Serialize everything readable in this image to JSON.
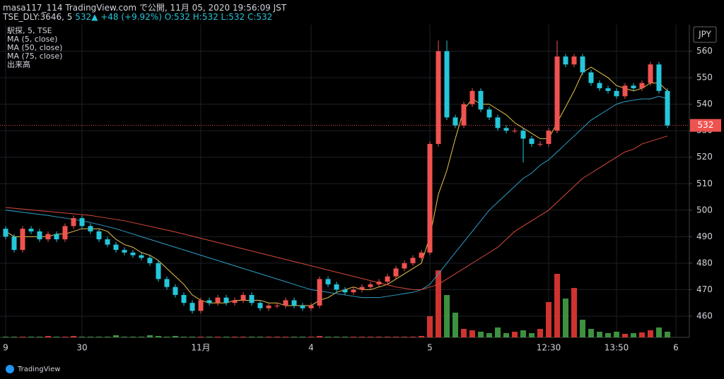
{
  "header": {
    "line1": "masa117_114 TradingView.com で公開, 11月 05, 2020 19:56:09 JST",
    "symbol": "TSE_DLY:3646, 5",
    "price": "532",
    "change": "▲ +48 (+9.92%)",
    "ohlc": "O:532 H:532 L:532 C:532"
  },
  "logo": "TradingView",
  "chart_data": {
    "type": "candlestick",
    "legend": [
      "駅探, 5, TSE",
      "MA (5, close)",
      "MA (50, close)",
      "MA (75, close)",
      "出来高"
    ],
    "currency": "JPY",
    "last_price": 532,
    "up_color": "#ef5350",
    "down_color": "#26c6da",
    "vol_up_color": "#e53935",
    "vol_down_color": "#43a047",
    "grid": true,
    "ylim": [
      452,
      570
    ],
    "yticks": [
      460,
      470,
      480,
      490,
      500,
      510,
      520,
      530,
      540,
      550,
      560
    ],
    "categories": [
      "9",
      null,
      null,
      null,
      null,
      null,
      null,
      null,
      null,
      "30",
      null,
      null,
      null,
      null,
      null,
      null,
      null,
      null,
      null,
      null,
      null,
      null,
      null,
      "11月",
      null,
      null,
      null,
      null,
      null,
      null,
      null,
      null,
      null,
      null,
      null,
      null,
      "4",
      null,
      null,
      null,
      null,
      null,
      null,
      null,
      null,
      null,
      null,
      null,
      null,
      null,
      "5",
      null,
      null,
      null,
      null,
      null,
      null,
      null,
      null,
      null,
      null,
      null,
      null,
      null,
      "12:30",
      null,
      null,
      null,
      null,
      null,
      null,
      null,
      "13:50",
      null,
      null,
      null,
      null,
      null,
      null,
      "6"
    ],
    "open": [
      493,
      490,
      485,
      493,
      492,
      489,
      491,
      489,
      494,
      497,
      494,
      492,
      489,
      487,
      485,
      484,
      483,
      482,
      480,
      474,
      471,
      468,
      465,
      462,
      466,
      465,
      467,
      465,
      466,
      468,
      465,
      463,
      464,
      464,
      466,
      464,
      463,
      464,
      474,
      472,
      470,
      469,
      470,
      471,
      472,
      473,
      475,
      478,
      480,
      482,
      484,
      525,
      560,
      535,
      532,
      540,
      545,
      538,
      535,
      531,
      530,
      530,
      527,
      525,
      525,
      530,
      558,
      555,
      558,
      552,
      548,
      546,
      545,
      543,
      547,
      546,
      548,
      555,
      545,
      null
    ],
    "high": [
      494,
      491,
      494,
      494,
      493,
      492,
      492,
      495,
      498,
      498,
      495,
      493,
      490,
      488,
      486,
      485,
      484,
      483,
      481,
      475,
      472,
      469,
      466,
      467,
      467,
      468,
      468,
      467,
      469,
      469,
      466,
      465,
      465,
      467,
      467,
      465,
      465,
      475,
      475,
      473,
      471,
      471,
      472,
      473,
      474,
      476,
      479,
      481,
      483,
      485,
      526,
      564,
      564,
      536,
      541,
      546,
      546,
      539,
      536,
      532,
      531,
      531,
      528,
      526,
      531,
      564,
      559,
      559,
      559,
      553,
      549,
      547,
      546,
      548,
      548,
      549,
      556,
      556,
      546,
      null
    ],
    "low": [
      489,
      484,
      484,
      491,
      488,
      488,
      488,
      488,
      493,
      493,
      491,
      488,
      486,
      484,
      483,
      482,
      481,
      479,
      473,
      470,
      467,
      464,
      461,
      461,
      464,
      464,
      464,
      464,
      465,
      464,
      462,
      462,
      463,
      463,
      463,
      462,
      462,
      463,
      471,
      469,
      468,
      468,
      469,
      470,
      471,
      472,
      474,
      477,
      479,
      481,
      483,
      524,
      534,
      531,
      531,
      539,
      537,
      534,
      530,
      529,
      529,
      518,
      524,
      524,
      524,
      529,
      554,
      554,
      551,
      547,
      545,
      544,
      542,
      542,
      545,
      545,
      547,
      544,
      531,
      null
    ],
    "close": [
      490,
      485,
      493,
      492,
      489,
      491,
      489,
      494,
      497,
      494,
      492,
      489,
      487,
      485,
      484,
      483,
      482,
      480,
      474,
      471,
      468,
      465,
      462,
      466,
      465,
      467,
      465,
      466,
      468,
      465,
      463,
      464,
      464,
      466,
      464,
      463,
      464,
      474,
      472,
      470,
      469,
      470,
      471,
      472,
      473,
      475,
      478,
      480,
      482,
      484,
      525,
      560,
      535,
      532,
      540,
      545,
      538,
      535,
      531,
      530,
      530,
      527,
      525,
      525,
      530,
      558,
      555,
      558,
      552,
      548,
      546,
      545,
      543,
      547,
      546,
      548,
      555,
      545,
      532,
      null
    ],
    "volume": [
      1,
      1,
      1,
      1,
      1,
      2,
      1,
      1,
      2,
      1,
      1,
      1,
      1,
      3,
      1,
      1,
      1,
      3,
      2,
      1,
      2,
      1,
      1,
      1,
      1,
      1,
      1,
      1,
      1,
      1,
      1,
      1,
      1,
      1,
      1,
      1,
      1,
      2,
      1,
      1,
      1,
      1,
      1,
      1,
      1,
      1,
      1,
      1,
      1,
      2,
      30,
      95,
      60,
      35,
      12,
      10,
      8,
      6,
      14,
      6,
      8,
      10,
      6,
      12,
      50,
      90,
      55,
      70,
      25,
      12,
      8,
      6,
      8,
      5,
      6,
      7,
      10,
      14,
      8,
      null
    ],
    "series": [
      {
        "name": "MA (5, close)",
        "color": "#e8c547",
        "values": [
          492,
          490,
          490,
          490,
          490,
          490,
          491,
          491,
          492,
          493,
          493,
          493,
          492,
          489,
          487,
          486,
          484,
          483,
          481,
          478,
          475,
          472,
          468,
          466,
          465,
          465,
          465,
          466,
          466,
          466,
          466,
          465,
          465,
          464,
          464,
          464,
          464,
          466,
          467,
          469,
          470,
          471,
          470,
          470,
          471,
          472,
          474,
          476,
          478,
          480,
          490,
          506,
          515,
          527,
          538,
          542,
          540,
          540,
          538,
          536,
          533,
          531,
          529,
          527,
          527,
          533,
          539,
          545,
          552,
          554,
          552,
          550,
          547,
          546,
          545,
          546,
          548,
          548,
          545,
          null
        ]
      },
      {
        "name": "MA (50, close)",
        "color": "#2ea0c8",
        "values": [
          500,
          499.6,
          499.2,
          498.8,
          498.4,
          498,
          497.5,
          497,
          496.5,
          496,
          495.3,
          494.6,
          493.8,
          493,
          492,
          491,
          490,
          489,
          488,
          487,
          486,
          485,
          484,
          483,
          482,
          481,
          480,
          479,
          478,
          477,
          476,
          475,
          474,
          473,
          472,
          471,
          470,
          469.5,
          469,
          468.5,
          468,
          467.5,
          467,
          467,
          467,
          467.5,
          468,
          468.5,
          469,
          470,
          472,
          476,
          480,
          484,
          488,
          492,
          496,
          500,
          503,
          506,
          509,
          512,
          514,
          517,
          519,
          522,
          525,
          528,
          531,
          534,
          536,
          538,
          540,
          541,
          541.5,
          542,
          542,
          543,
          542,
          null
        ]
      },
      {
        "name": "MA (75, close)",
        "color": "#d84a3a",
        "values": [
          501,
          500.7,
          500.4,
          500.1,
          499.8,
          499.5,
          499.2,
          498.9,
          498.6,
          498.3,
          498,
          497.5,
          497,
          496.5,
          496,
          495.3,
          494.6,
          493.9,
          493.2,
          492.5,
          491.8,
          491,
          490.2,
          489.4,
          488.6,
          487.8,
          487,
          486.2,
          485.4,
          484.6,
          483.8,
          483,
          482.2,
          481.4,
          480.6,
          479.8,
          479,
          478.2,
          477.4,
          476.6,
          475.8,
          475,
          474.2,
          473.4,
          472.6,
          471.8,
          471,
          470.5,
          470,
          470,
          471,
          472,
          474,
          476,
          478,
          480,
          482,
          484,
          486,
          489,
          492,
          494,
          496,
          498,
          500,
          503,
          506,
          509,
          512,
          514,
          516,
          518,
          520,
          522,
          523,
          525,
          526,
          527,
          528,
          null
        ]
      }
    ]
  }
}
